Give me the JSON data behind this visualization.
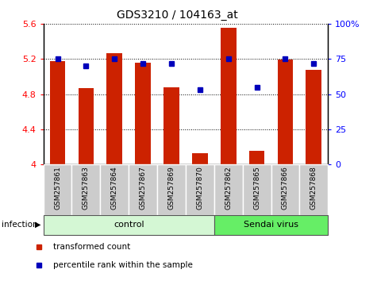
{
  "title": "GDS3210 / 104163_at",
  "samples": [
    "GSM257861",
    "GSM257863",
    "GSM257864",
    "GSM257867",
    "GSM257869",
    "GSM257870",
    "GSM257862",
    "GSM257865",
    "GSM257866",
    "GSM257868"
  ],
  "red_values": [
    5.18,
    4.87,
    5.27,
    5.16,
    4.88,
    4.13,
    5.56,
    4.15,
    5.19,
    5.08
  ],
  "blue_values": [
    75,
    70,
    75,
    72,
    72,
    53,
    75,
    55,
    75,
    72
  ],
  "ylim_left": [
    4.0,
    5.6
  ],
  "ylim_right": [
    0,
    100
  ],
  "yticks_left": [
    4.0,
    4.4,
    4.8,
    5.2,
    5.6
  ],
  "yticks_right": [
    0,
    25,
    50,
    75,
    100
  ],
  "groups": [
    {
      "label": "control",
      "indices": [
        0,
        1,
        2,
        3,
        4,
        5
      ],
      "color": "#d4f7d4"
    },
    {
      "label": "Sendai virus",
      "indices": [
        6,
        7,
        8,
        9
      ],
      "color": "#66ee66"
    }
  ],
  "infection_label": "infection",
  "bar_color": "#cc2200",
  "dot_color": "#0000bb",
  "bg_color": "#ffffff",
  "tick_bg": "#cccccc",
  "legend_items": [
    {
      "label": "transformed count",
      "color": "#cc2200",
      "marker": "s"
    },
    {
      "label": "percentile rank within the sample",
      "color": "#0000bb",
      "marker": "s"
    }
  ],
  "title_fontsize": 10,
  "tick_fontsize": 8
}
